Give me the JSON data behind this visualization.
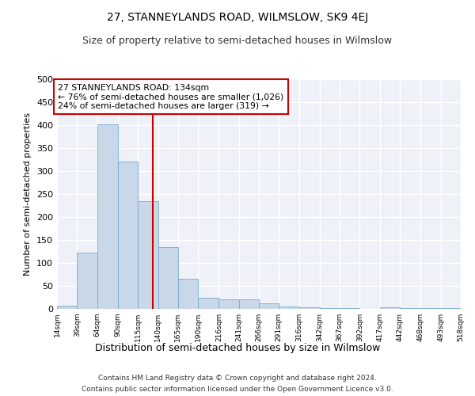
{
  "title": "27, STANNEYLANDS ROAD, WILMSLOW, SK9 4EJ",
  "subtitle": "Size of property relative to semi-detached houses in Wilmslow",
  "xlabel": "Distribution of semi-detached houses by size in Wilmslow",
  "ylabel": "Number of semi-detached properties",
  "footnote1": "Contains HM Land Registry data © Crown copyright and database right 2024.",
  "footnote2": "Contains public sector information licensed under the Open Government Licence v3.0.",
  "annotation_line1": "27 STANNEYLANDS ROAD: 134sqm",
  "annotation_line2": "← 76% of semi-detached houses are smaller (1,026)",
  "annotation_line3": "24% of semi-detached houses are larger (319) →",
  "property_size": 134,
  "bar_left_edges": [
    14,
    39,
    64,
    90,
    115,
    140,
    165,
    190,
    216,
    241,
    266,
    291,
    316,
    342,
    367,
    392,
    417,
    442,
    468,
    493
  ],
  "bar_widths": [
    25,
    25,
    26,
    25,
    25,
    25,
    25,
    26,
    25,
    25,
    25,
    25,
    26,
    25,
    25,
    25,
    25,
    26,
    25,
    25
  ],
  "bar_heights": [
    7,
    123,
    402,
    320,
    235,
    135,
    65,
    25,
    20,
    20,
    12,
    6,
    3,
    1,
    1,
    0,
    3,
    1,
    1,
    1
  ],
  "tick_labels": [
    "14sqm",
    "39sqm",
    "64sqm",
    "90sqm",
    "115sqm",
    "140sqm",
    "165sqm",
    "190sqm",
    "216sqm",
    "241sqm",
    "266sqm",
    "291sqm",
    "316sqm",
    "342sqm",
    "367sqm",
    "392sqm",
    "417sqm",
    "442sqm",
    "468sqm",
    "493sqm",
    "518sqm"
  ],
  "bar_color": "#c8d8e8",
  "bar_edge_color": "#7aaacc",
  "vline_color": "#cc0000",
  "bg_color": "#eef2f8",
  "grid_color": "#ffffff",
  "annotation_box_color": "#cc0000",
  "ylim": [
    0,
    500
  ],
  "yticks": [
    0,
    50,
    100,
    150,
    200,
    250,
    300,
    350,
    400,
    450,
    500
  ],
  "title_fontsize": 10,
  "subtitle_fontsize": 9,
  "ylabel_fontsize": 8,
  "xlabel_fontsize": 9
}
